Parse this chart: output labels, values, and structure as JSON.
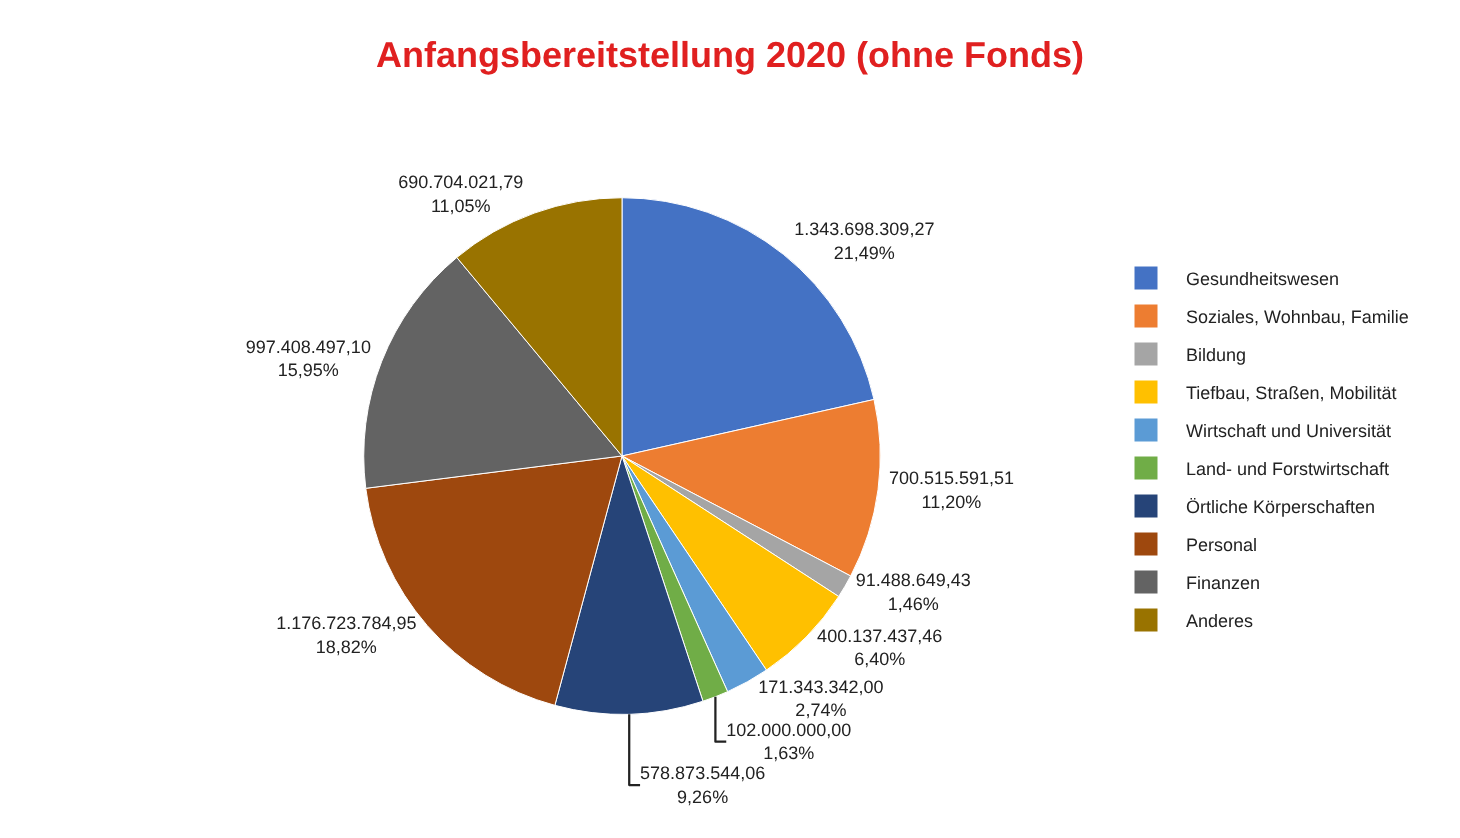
{
  "chart_data": {
    "type": "pie",
    "title": "Anfangsbereitstellung 2020 (ohne Fonds)",
    "categories": [
      "Gesundheitswesen",
      "Soziales, Wohnbau, Familie",
      "Bildung",
      "Tiefbau, Straßen, Mobilität",
      "Wirtschaft und Universität",
      "Land- und Forstwirtschaft",
      "Örtliche Körperschaften",
      "Personal",
      "Finanzen",
      "Anderes"
    ],
    "values": [
      1343698309.27,
      700515591.51,
      91488649.43,
      400137437.46,
      171343342.0,
      102000000.0,
      578873544.06,
      1176723784.95,
      997408497.1,
      690704021.79
    ],
    "colors": [
      "#4472c4",
      "#ed7d31",
      "#a5a5a5",
      "#ffc000",
      "#5b9bd5",
      "#70ad47",
      "#264478",
      "#9e480e",
      "#636363",
      "#997300"
    ],
    "value_labels": [
      "1.343.698.309,27\n21,49%",
      "700.515.591,51\n11,20%",
      "91.488.649,43\n1,46%",
      "400.137.437,46\n6,40%",
      "171.343.342,00\n2,74%",
      "102.000.000,00\n1,63%",
      "578.873.544,06\n9,26%",
      "1.176.723.784,95\n18,82%",
      "997.408.497,10\n15,95%",
      "690.704.021,79\n11,05%"
    ],
    "legend": "right"
  }
}
